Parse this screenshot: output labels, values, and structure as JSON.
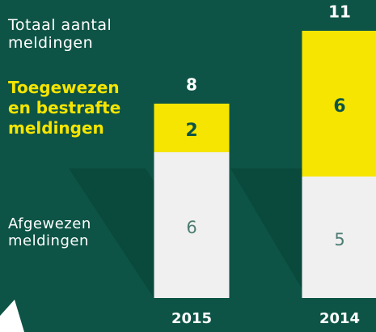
{
  "chart_data": {
    "type": "stacked_bar",
    "total_label": "Totaal aantal meldingen",
    "categories": [
      "2015",
      "2014"
    ],
    "totals": [
      8,
      11
    ],
    "series": [
      {
        "name": "Afgewezen meldingen",
        "color": "#f0f0f0",
        "values": [
          6,
          5
        ]
      },
      {
        "name": "Toegewezen en bestrafte meldingen",
        "color": "#f6e500",
        "values": [
          2,
          6
        ]
      }
    ]
  }
}
